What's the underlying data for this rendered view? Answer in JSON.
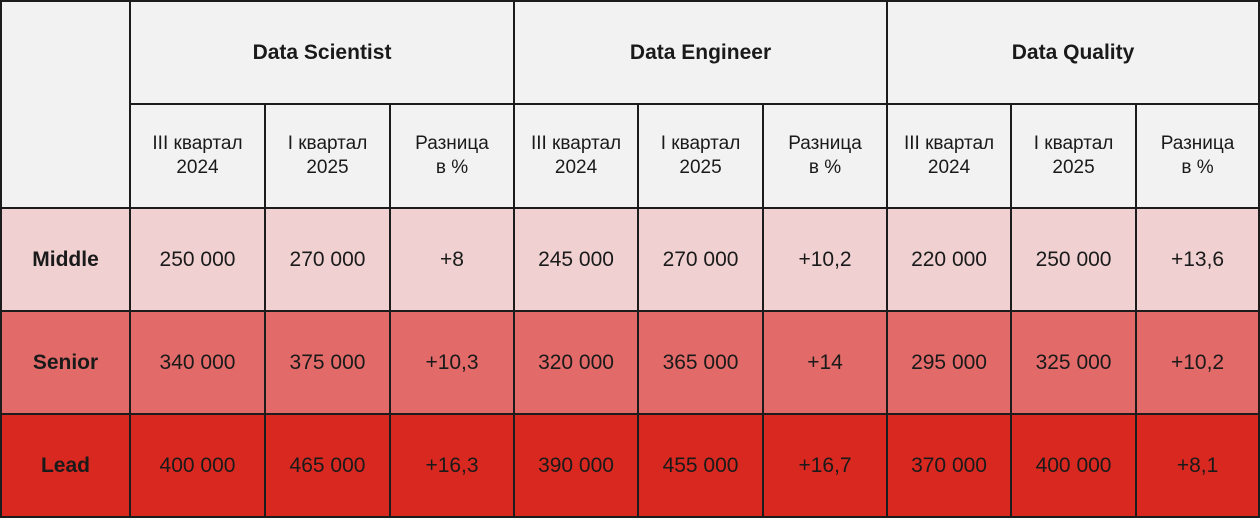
{
  "chart_data": {
    "type": "table",
    "groups": [
      "Data Scientist",
      "Data Engineer",
      "Data Quality"
    ],
    "sub_headers": [
      [
        "III квартал",
        "2024"
      ],
      [
        "I квартал",
        "2025"
      ],
      [
        "Разница",
        "в %"
      ]
    ],
    "rows": [
      {
        "label": "Middle",
        "color": "#f0d0d0",
        "values": [
          "250 000",
          "270 000",
          "+8",
          "245 000",
          "270 000",
          "+10,2",
          "220 000",
          "250 000",
          "+13,6"
        ]
      },
      {
        "label": "Senior",
        "color": "#e26a68",
        "values": [
          "340 000",
          "375 000",
          "+10,3",
          "320 000",
          "365 000",
          "+14",
          "295 000",
          "325 000",
          "+10,2"
        ]
      },
      {
        "label": "Lead",
        "color": "#d9281f",
        "values": [
          "400 000",
          "465 000",
          "+16,3",
          "390 000",
          "455 000",
          "+16,7",
          "370 000",
          "400 000",
          "+8,1"
        ]
      }
    ]
  }
}
